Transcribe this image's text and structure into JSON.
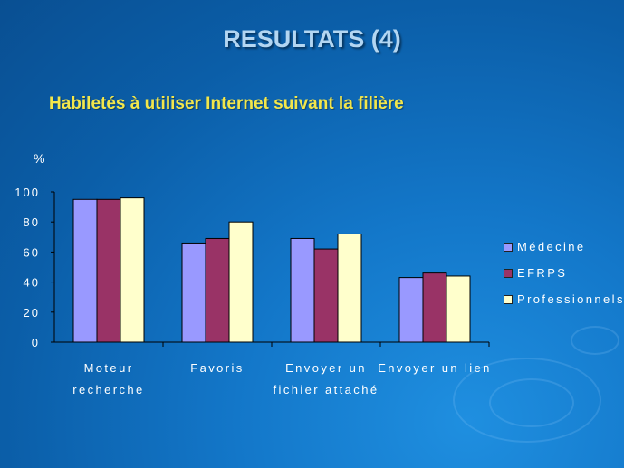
{
  "slide": {
    "title": "RESULTATS (4)",
    "subtitle": "Habiletés à utiliser Internet suivant la filière"
  },
  "chart_data": {
    "type": "bar",
    "ylabel": "%",
    "ylim": [
      0,
      100
    ],
    "yticks": [
      "0",
      "20",
      "40",
      "60",
      "80",
      "100"
    ],
    "categories": [
      [
        "Moteur",
        "recherche"
      ],
      [
        "Favoris"
      ],
      [
        "Envoyer un",
        "fichier attaché"
      ],
      [
        "Envoyer un lien"
      ]
    ],
    "series": [
      {
        "name": "Médecine",
        "color": "#9999ff",
        "values": [
          95,
          66,
          69,
          43
        ]
      },
      {
        "name": "EFRPS",
        "color": "#993366",
        "values": [
          95,
          69,
          62,
          46
        ]
      },
      {
        "name": "Professionnels",
        "color": "#ffffcc",
        "values": [
          96,
          80,
          72,
          44
        ]
      }
    ],
    "legend_position": "right"
  }
}
